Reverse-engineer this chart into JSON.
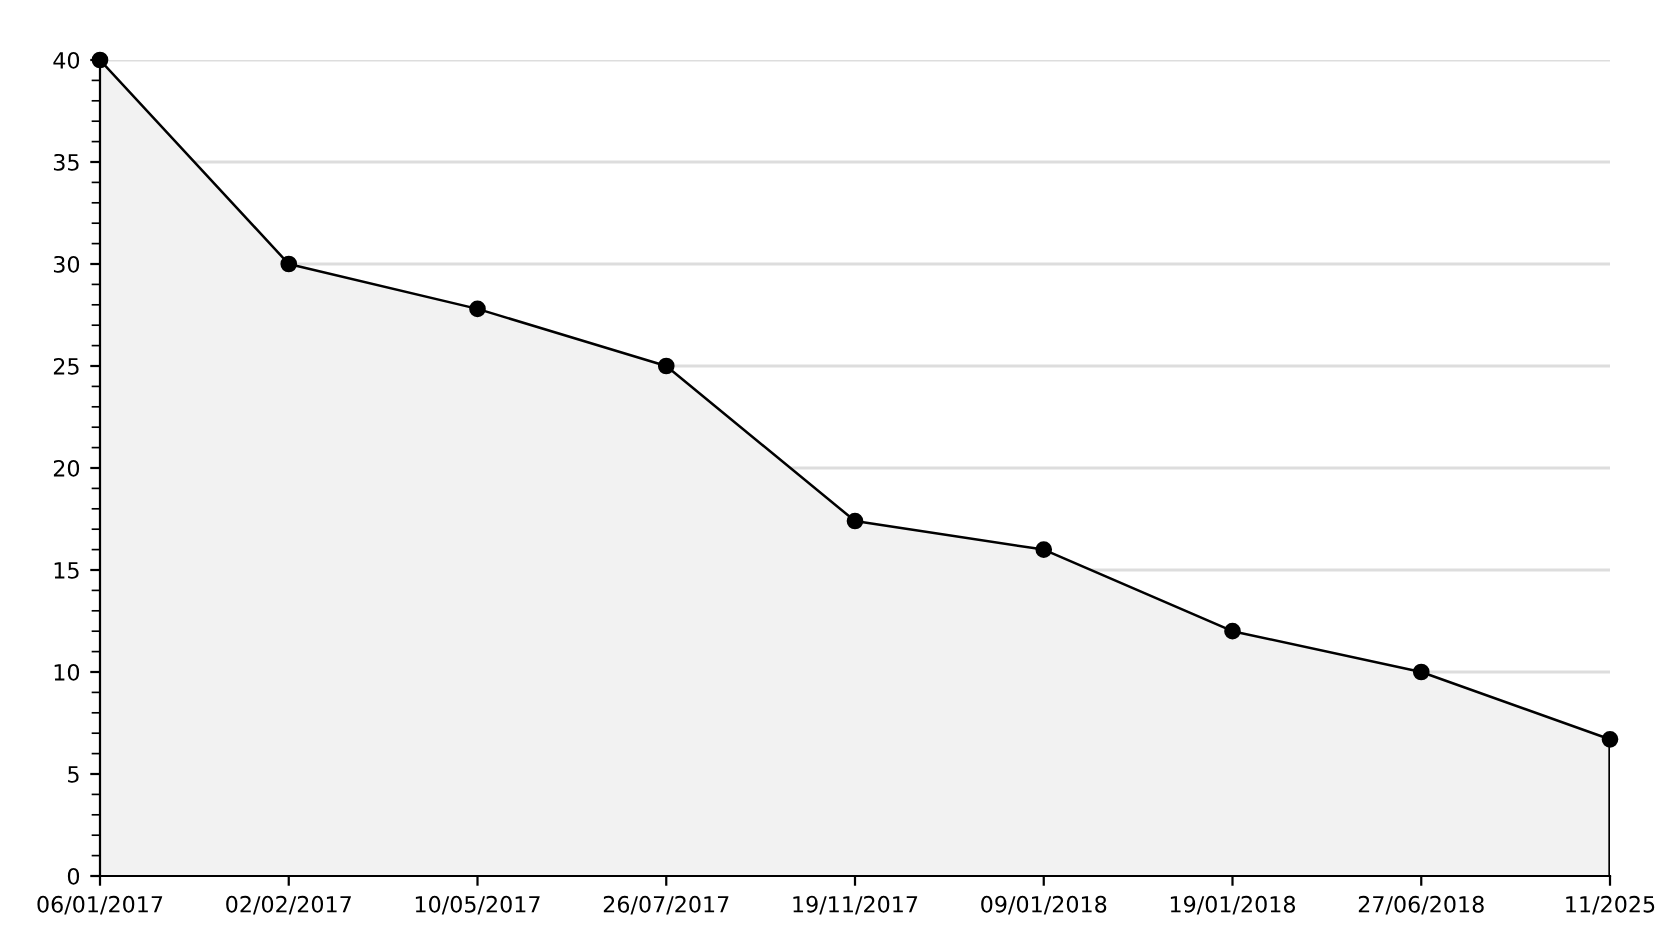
{
  "chart_data": {
    "type": "area",
    "categories": [
      "06/01/2017",
      "02/02/2017",
      "10/05/2017",
      "26/07/2017",
      "19/11/2017",
      "09/01/2018",
      "19/01/2018",
      "27/06/2018",
      "11/2025"
    ],
    "series": [
      {
        "color": "#000000",
        "values": [
          40,
          30,
          27.8,
          25,
          17.4,
          16,
          12,
          10,
          6.7
        ]
      }
    ],
    "ylim": [
      0,
      40
    ],
    "yticks": [
      0,
      5,
      10,
      15,
      20,
      25,
      30,
      35,
      40
    ],
    "grid": "y",
    "marker": "circle",
    "line_style": "solid"
  }
}
